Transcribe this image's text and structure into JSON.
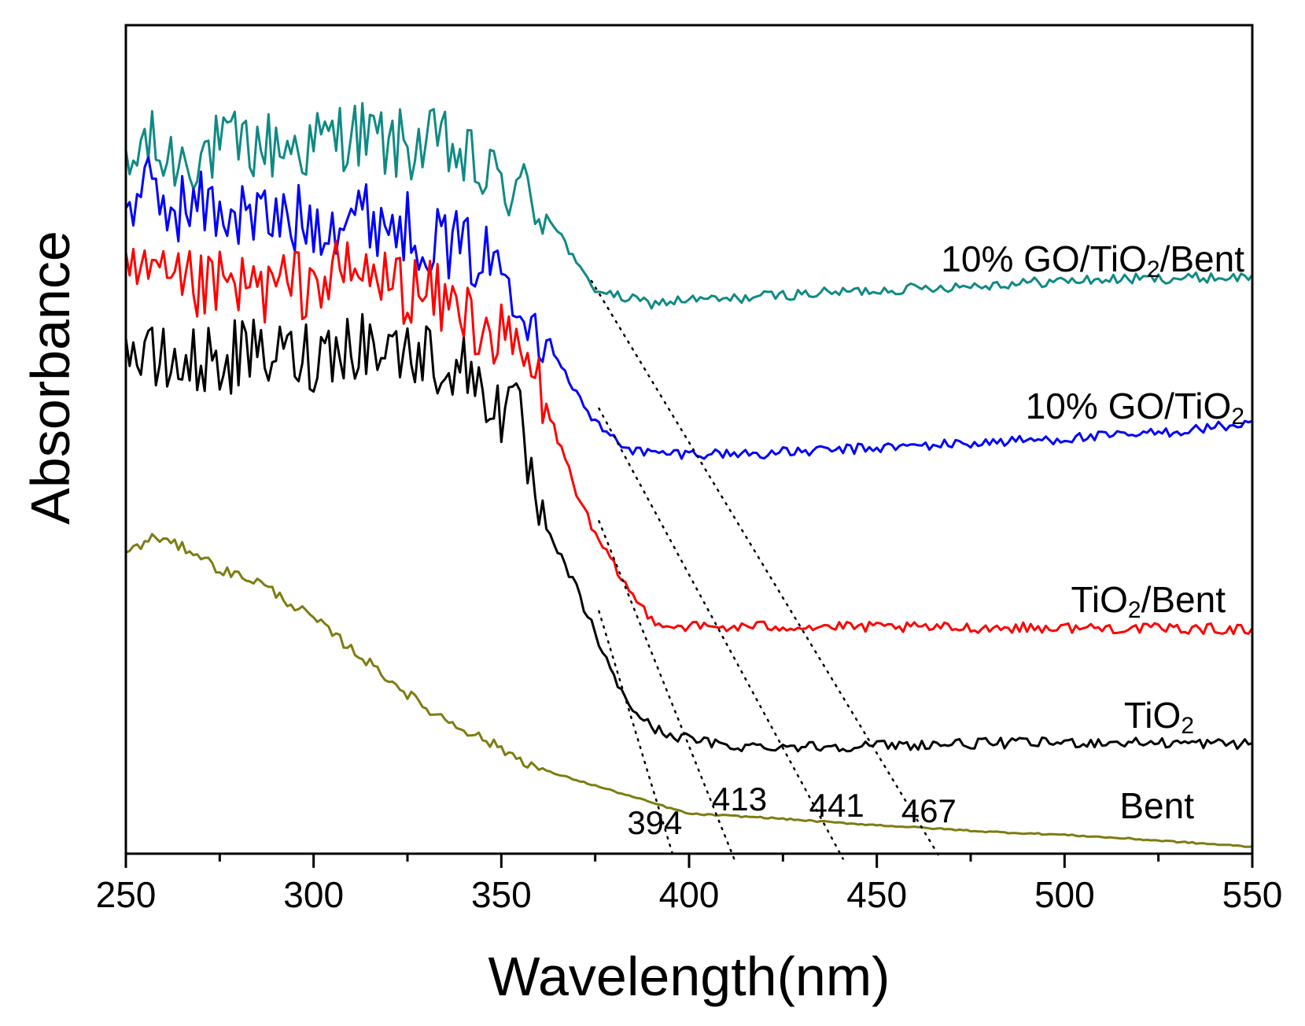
{
  "chart_data": {
    "type": "line",
    "title": "",
    "xlabel": "Wavelength(nm)",
    "ylabel": "Absorbance",
    "xlim": [
      250,
      550
    ],
    "ylim": [
      0,
      100
    ],
    "xticks": [
      250,
      300,
      350,
      400,
      450,
      500,
      550
    ],
    "xtick_labels": [
      "250",
      "300",
      "350",
      "400",
      "450",
      "500",
      "550"
    ],
    "grid": false,
    "y_tick_labels_shown": false,
    "series": [
      {
        "name": "10% GO/TiO2/Bent",
        "label_main": "10% GO/TiO",
        "label_sub": "2",
        "label_tail": "/Bent",
        "color": "#0f8a84",
        "noise": 5.0,
        "points": [
          [
            250,
            89
          ],
          [
            255,
            95
          ],
          [
            260,
            92
          ],
          [
            270,
            93
          ],
          [
            280,
            94
          ],
          [
            290,
            94
          ],
          [
            300,
            94
          ],
          [
            310,
            96
          ],
          [
            320,
            94
          ],
          [
            330,
            94
          ],
          [
            335,
            94
          ],
          [
            340,
            92
          ],
          [
            345,
            90
          ],
          [
            350,
            89
          ],
          [
            355,
            88
          ],
          [
            360,
            86
          ],
          [
            365,
            83
          ],
          [
            370,
            78
          ],
          [
            375,
            75
          ],
          [
            380,
            74
          ],
          [
            390,
            73
          ],
          [
            400,
            73.5
          ],
          [
            410,
            73.5
          ],
          [
            420,
            74
          ],
          [
            440,
            74.5
          ],
          [
            460,
            75
          ],
          [
            480,
            75.5
          ],
          [
            500,
            76
          ],
          [
            520,
            76.3
          ],
          [
            550,
            76.5
          ]
        ]
      },
      {
        "name": "10% GO/TiO2",
        "label_main": "10% GO/TiO",
        "label_sub": "2",
        "label_tail": "",
        "color": "#0000ff",
        "noise": 5.0,
        "points": [
          [
            250,
            87
          ],
          [
            255,
            88
          ],
          [
            260,
            86
          ],
          [
            270,
            86
          ],
          [
            280,
            85
          ],
          [
            290,
            84
          ],
          [
            300,
            84
          ],
          [
            310,
            85
          ],
          [
            320,
            84
          ],
          [
            330,
            82
          ],
          [
            335,
            81
          ],
          [
            340,
            80
          ],
          [
            345,
            79
          ],
          [
            350,
            78
          ],
          [
            355,
            75
          ],
          [
            360,
            70
          ],
          [
            365,
            66
          ],
          [
            370,
            61
          ],
          [
            375,
            57
          ],
          [
            380,
            55
          ],
          [
            385,
            53.5
          ],
          [
            390,
            53
          ],
          [
            400,
            53
          ],
          [
            410,
            53
          ],
          [
            420,
            53
          ],
          [
            440,
            53.5
          ],
          [
            460,
            54
          ],
          [
            480,
            54.5
          ],
          [
            500,
            55
          ],
          [
            520,
            55.5
          ],
          [
            550,
            57
          ]
        ]
      },
      {
        "name": "TiO2/Bent",
        "label_main": "TiO",
        "label_sub": "2",
        "label_tail": "/Bent",
        "color": "#ff0000",
        "noise": 5.0,
        "points": [
          [
            250,
            75
          ],
          [
            255,
            77
          ],
          [
            260,
            75
          ],
          [
            270,
            75
          ],
          [
            280,
            75
          ],
          [
            290,
            75
          ],
          [
            300,
            76
          ],
          [
            310,
            77
          ],
          [
            320,
            76
          ],
          [
            330,
            74
          ],
          [
            340,
            72
          ],
          [
            345,
            70
          ],
          [
            350,
            68
          ],
          [
            355,
            66
          ],
          [
            360,
            62
          ],
          [
            365,
            55
          ],
          [
            370,
            48
          ],
          [
            375,
            42
          ],
          [
            380,
            38
          ],
          [
            385,
            34
          ],
          [
            390,
            31
          ],
          [
            395,
            30
          ],
          [
            400,
            30
          ],
          [
            410,
            29.8
          ],
          [
            420,
            30
          ],
          [
            440,
            29.9
          ],
          [
            460,
            29.8
          ],
          [
            480,
            29.8
          ],
          [
            500,
            29.8
          ],
          [
            520,
            29.7
          ],
          [
            550,
            29.6
          ]
        ]
      },
      {
        "name": "TiO2",
        "label_main": "TiO",
        "label_sub": "2",
        "label_tail": "",
        "color": "#000000",
        "noise": 5.0,
        "points": [
          [
            250,
            68
          ],
          [
            255,
            65
          ],
          [
            260,
            65
          ],
          [
            270,
            65
          ],
          [
            280,
            66
          ],
          [
            290,
            66
          ],
          [
            300,
            66
          ],
          [
            310,
            68
          ],
          [
            320,
            67
          ],
          [
            330,
            66
          ],
          [
            340,
            64
          ],
          [
            345,
            62
          ],
          [
            350,
            59
          ],
          [
            355,
            57
          ],
          [
            360,
            44
          ],
          [
            365,
            40
          ],
          [
            370,
            35
          ],
          [
            375,
            29
          ],
          [
            380,
            23
          ],
          [
            385,
            19
          ],
          [
            390,
            16.5
          ],
          [
            395,
            15.5
          ],
          [
            400,
            15
          ],
          [
            410,
            14
          ],
          [
            420,
            14
          ],
          [
            440,
            14
          ],
          [
            460,
            14.2
          ],
          [
            480,
            14.4
          ],
          [
            500,
            14.5
          ],
          [
            520,
            14.5
          ],
          [
            550,
            14.3
          ]
        ]
      },
      {
        "name": "Bent",
        "label_main": "Bent",
        "label_sub": "",
        "label_tail": "",
        "color": "#7d7d10",
        "noise": 0.7,
        "points": [
          [
            250,
            40
          ],
          [
            255,
            41
          ],
          [
            258,
            42
          ],
          [
            262,
            41
          ],
          [
            268,
            40
          ],
          [
            275,
            37.5
          ],
          [
            285,
            36
          ],
          [
            300,
            31
          ],
          [
            315,
            25
          ],
          [
            330,
            19
          ],
          [
            345,
            15
          ],
          [
            360,
            11
          ],
          [
            370,
            9.5
          ],
          [
            380,
            8
          ],
          [
            390,
            6.5
          ],
          [
            400,
            5
          ],
          [
            420,
            4.5
          ],
          [
            440,
            3.8
          ],
          [
            460,
            3.2
          ],
          [
            480,
            2.6
          ],
          [
            500,
            2.2
          ],
          [
            520,
            1.6
          ],
          [
            550,
            0.6
          ]
        ]
      }
    ],
    "tangent_lines": [
      {
        "series": "TiO2",
        "from": [
          376,
          32
        ],
        "to": [
          396,
          -1
        ]
      },
      {
        "series": "TiO2/Bent",
        "from": [
          376,
          44
        ],
        "to": [
          412,
          -1
        ]
      },
      {
        "series": "10% GO/TiO2",
        "from": [
          376,
          59
        ],
        "to": [
          441,
          -1
        ]
      },
      {
        "series": "10% GO/TiO2/Bent",
        "from": [
          374,
          76
        ],
        "to": [
          467,
          -1
        ]
      }
    ],
    "annotations": [
      {
        "text": "394",
        "x": 394
      },
      {
        "text": "413",
        "x": 413
      },
      {
        "text": "441",
        "x": 441
      },
      {
        "text": "467",
        "x": 467
      }
    ]
  }
}
